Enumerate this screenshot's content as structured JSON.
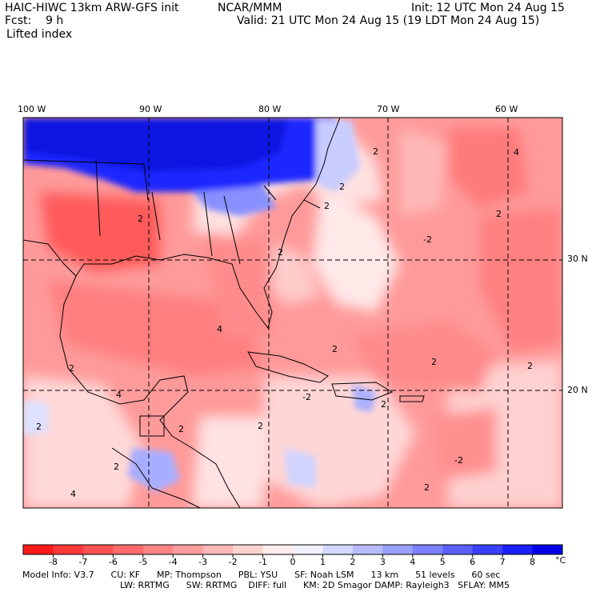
{
  "header": {
    "model_title": "HAIC-HIWC 13km ARW-GFS init",
    "org": "NCAR/MMM",
    "init": "Init: 12 UTC Mon 24 Aug 15",
    "fcst": "Fcst:    9 h",
    "valid": "Valid: 21 UTC Mon 24 Aug 15 (19 LDT Mon 24 Aug 15)",
    "field": "Lifted index"
  },
  "map": {
    "lon_labels": [
      "100 W",
      "90 W",
      "80 W",
      "70 W",
      "60 W"
    ],
    "lat_labels": [
      "30 N",
      "20 N"
    ],
    "contour_labels": [
      "2",
      "4",
      "2",
      "2",
      "2",
      "2",
      "-2",
      "2",
      "4",
      "2",
      "-2",
      "2",
      "2",
      "2",
      "4",
      "2",
      "2",
      "2",
      "2",
      "-2",
      "2",
      "2",
      "4"
    ]
  },
  "colorbar": {
    "ticks": [
      "-8",
      "-7",
      "-6",
      "-5",
      "-4",
      "-3",
      "-2",
      "-1",
      "0",
      "1",
      "2",
      "3",
      "4",
      "5",
      "6",
      "7",
      "8"
    ],
    "unit": "°C",
    "colors": [
      "#ff1a1a",
      "#ff3838",
      "#ff5252",
      "#ff6b6b",
      "#ff8585",
      "#ff9e9e",
      "#ffb8b8",
      "#ffd2d2",
      "#ffecec",
      "#f0f0ff",
      "#d4d8ff",
      "#b8bcff",
      "#9aa0ff",
      "#7a80ff",
      "#5a60ff",
      "#3a40ff",
      "#1a20ff",
      "#0000e8"
    ]
  },
  "model_info": {
    "line1": "Model Info: V3.7      CU: KF      MP: Thompson      PBL: YSU      SF: Noah LSM      13 km      51 levels      60 sec",
    "line2": "LW: RRTMG      SW: RRTMG    DIFF: full      KM: 2D Smagor DAMP: Rayleigh3   SFLAY: MM5"
  }
}
